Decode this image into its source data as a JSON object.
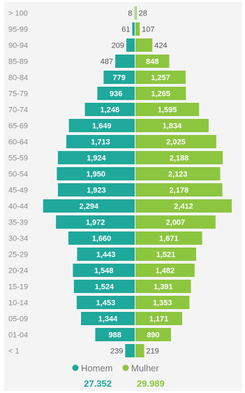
{
  "chart_data": {
    "type": "bar",
    "orientation": "horizontal-butterfly",
    "categories": [
      "> 100",
      "95-99",
      "90-94",
      "85-89",
      "80-84",
      "75-79",
      "70-74",
      "65-69",
      "60-64",
      "55-59",
      "50-54",
      "45-49",
      "40-44",
      "35-39",
      "30-34",
      "25-29",
      "20-24",
      "15-19",
      "10-14",
      "05-09",
      "01-04",
      "< 1"
    ],
    "series": [
      {
        "name": "Homem",
        "color": "#1fa89c",
        "values": [
          8,
          61,
          209,
          487,
          779,
          936,
          1248,
          1649,
          1713,
          1924,
          1950,
          1923,
          2294,
          1972,
          1660,
          1443,
          1548,
          1524,
          1453,
          1344,
          988,
          239
        ],
        "labels": [
          "8",
          "61",
          "209",
          "487",
          "779",
          "936",
          "1,248",
          "1,649",
          "1,713",
          "1,924",
          "1,950",
          "1,923",
          "2,294",
          "1,972",
          "1,660",
          "1,443",
          "1,548",
          "1,524",
          "1,453",
          "1,344",
          "988",
          "239"
        ],
        "total": "27.352"
      },
      {
        "name": "Mulher",
        "color": "#8cc63f",
        "values": [
          28,
          107,
          424,
          848,
          1257,
          1265,
          1595,
          1834,
          2025,
          2188,
          2123,
          2178,
          2412,
          2007,
          1671,
          1521,
          1482,
          1391,
          1353,
          1171,
          890,
          219
        ],
        "labels": [
          "28",
          "107",
          "424",
          "848",
          "1,257",
          "1,265",
          "1,595",
          "1,834",
          "2,025",
          "2,188",
          "2,123",
          "2,178",
          "2,412",
          "2,007",
          "1,671",
          "1,521",
          "1,482",
          "1,391",
          "1,353",
          "1,171",
          "890",
          "219"
        ],
        "total": "29.989"
      }
    ],
    "legend_position": "bottom",
    "grid": false
  }
}
